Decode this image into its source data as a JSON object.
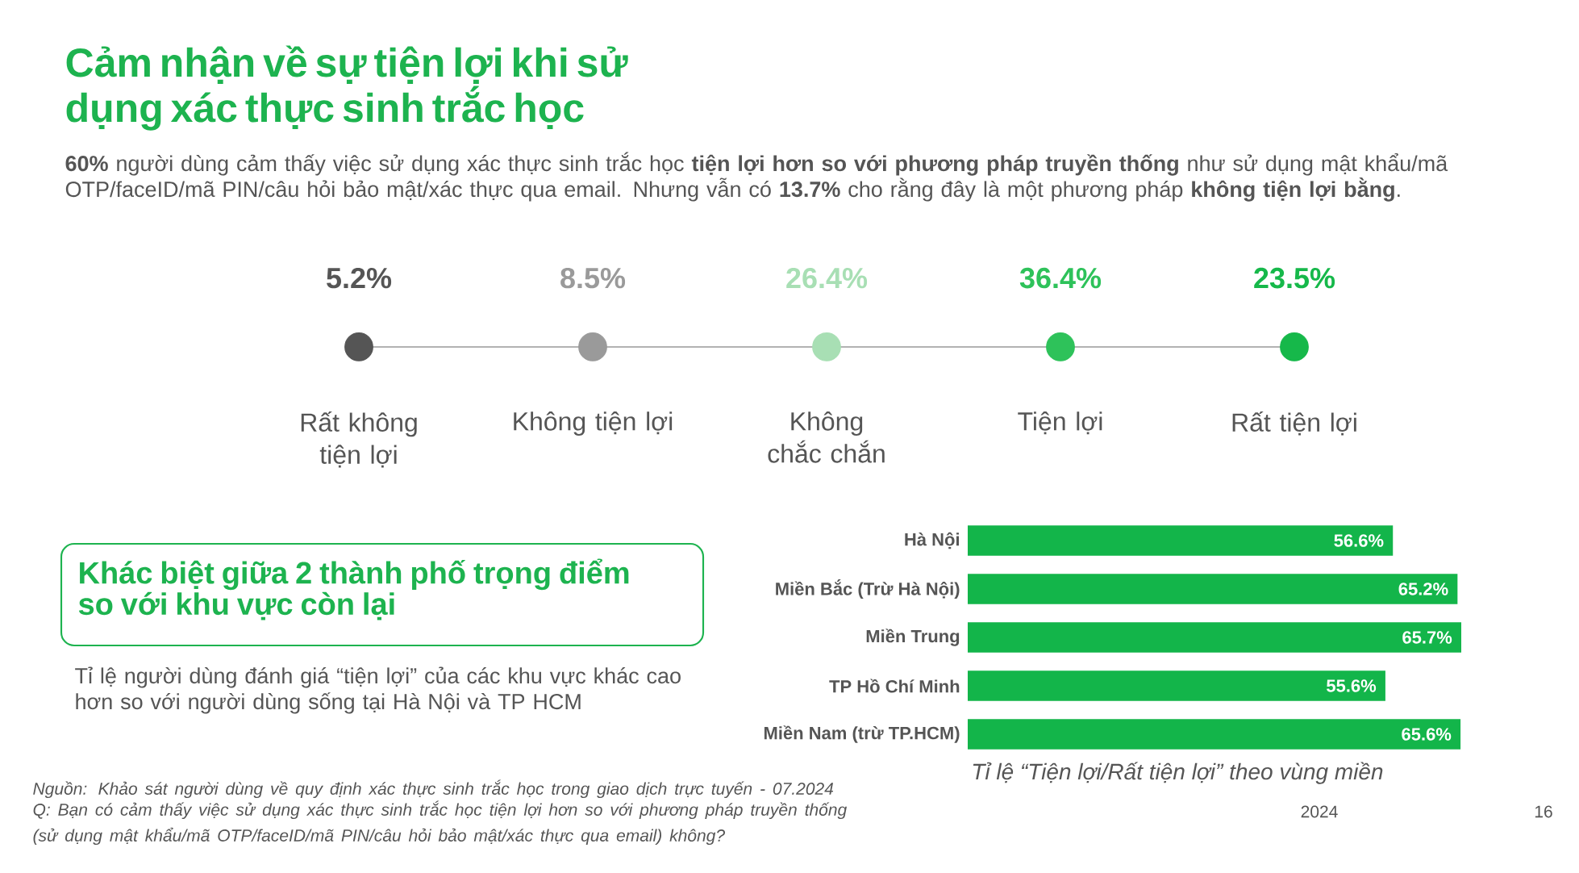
{
  "chart_data": [
    {
      "type": "other",
      "title": "Cảm nhận về sự tiện lợi khi sử dụng xác thực sinh trắc học",
      "subtitle": "**60%** người dùng cảm thấy việc sử dụng xác thực sinh trắc học **tiện lợi hơn so với phương pháp truyền thống** như sử dụng mật khẩu/mã OTP/faceID/mã PIN/câu hỏi bảo mật/xác thực qua email. Nhưng vẫn có **13.7%** cho rằng đây là một phương pháp **không tiện lợi bằng**.",
      "categories": [
        "Rất không tiện lợi",
        "Không tiện lợi",
        "Không chắc chắn",
        "Tiện lợi",
        "Rất tiện lợi"
      ],
      "values": [
        5.2,
        8.5,
        26.4,
        36.4,
        23.5
      ],
      "value_labels": [
        "5.2%",
        "8.5%",
        "26.4%",
        "36.4%",
        "23.5%"
      ],
      "colors": [
        "#555555",
        "#9a9a9a",
        "#a8dfb4",
        "#2ec25a",
        "#16b84a"
      ],
      "annotations": [
        "Nguồn: Khảo sát người dùng về quy định xác thực sinh trắc học trong giao dịch trực tuyến - 07.2024",
        "Q: Bạn có cảm thấy việc sử dụng xác thực sinh trắc học tiện lợi hơn so với phương pháp truyền thống (sử dụng mật khẩu/mã OTP/faceID/mã PIN/câu hỏi bảo mật/xác thực qua email) không?",
        "2024",
        "16"
      ]
    },
    {
      "type": "bar",
      "orientation": "horizontal",
      "title": "Khác biệt giữa 2 thành phố trọng điểm so với khu vực còn lại",
      "subtitle": "Tỉ lệ người dùng đánh giá “tiện lợi” của các khu vực khác cao hơn so với người dùng sống tại Hà Nội và TP HCM",
      "xlabel": "Tỉ lệ “Tiện lợi/Rất tiện lợi” theo vùng miền",
      "categories": [
        "Hà Nội",
        "Miền Bắc (Trừ Hà Nội)",
        "Miền Trung",
        "TP Hồ Chí Minh",
        "Miền Nam (trừ TP.HCM)"
      ],
      "values": [
        56.6,
        65.2,
        65.7,
        55.6,
        65.6
      ],
      "value_labels": [
        "56.6%",
        "65.2%",
        "65.7%",
        "55.6%",
        "65.6%"
      ],
      "color": "#13b54a"
    }
  ]
}
